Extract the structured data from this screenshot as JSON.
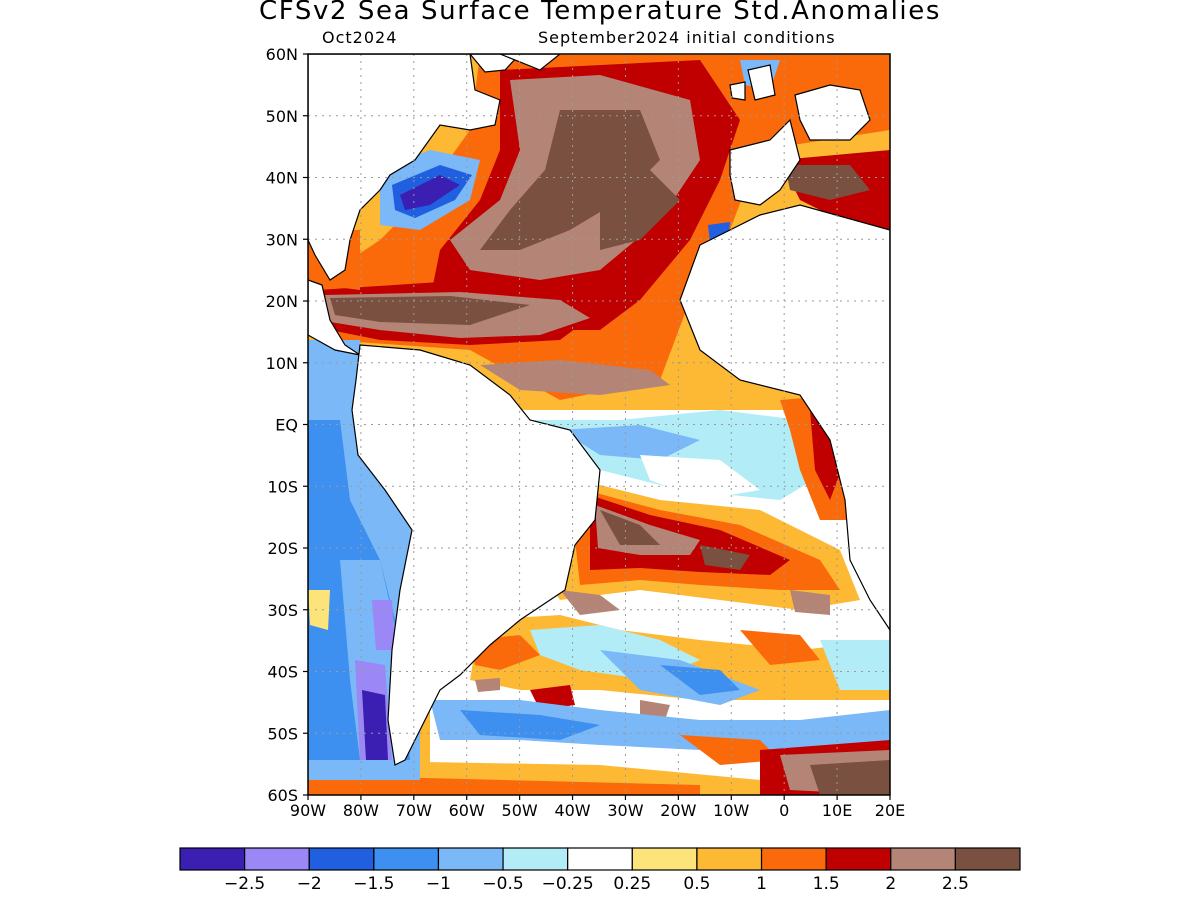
{
  "title": "CFSv2 Sea Surface Temperature Std.Anomalies",
  "subtitle_left": "Oct2024",
  "subtitle_right": "September2024 initial conditions",
  "map": {
    "lon_range": [
      -90,
      20
    ],
    "lat_range": [
      -60,
      60
    ],
    "grid": "dotted",
    "lat_ticks": [
      {
        "value": 60,
        "label": "60N"
      },
      {
        "value": 50,
        "label": "50N"
      },
      {
        "value": 40,
        "label": "40N"
      },
      {
        "value": 30,
        "label": "30N"
      },
      {
        "value": 20,
        "label": "20N"
      },
      {
        "value": 10,
        "label": "10N"
      },
      {
        "value": 0,
        "label": "EQ"
      },
      {
        "value": -10,
        "label": "10S"
      },
      {
        "value": -20,
        "label": "20S"
      },
      {
        "value": -30,
        "label": "30S"
      },
      {
        "value": -40,
        "label": "40S"
      },
      {
        "value": -50,
        "label": "50S"
      },
      {
        "value": -60,
        "label": "60S"
      }
    ],
    "lon_ticks": [
      {
        "value": -90,
        "label": "90W"
      },
      {
        "value": -80,
        "label": "80W"
      },
      {
        "value": -70,
        "label": "70W"
      },
      {
        "value": -60,
        "label": "60W"
      },
      {
        "value": -50,
        "label": "50W"
      },
      {
        "value": -40,
        "label": "40W"
      },
      {
        "value": -30,
        "label": "30W"
      },
      {
        "value": -20,
        "label": "20W"
      },
      {
        "value": -10,
        "label": "10W"
      },
      {
        "value": 0,
        "label": "0"
      },
      {
        "value": 10,
        "label": "10E"
      },
      {
        "value": 20,
        "label": "20E"
      }
    ]
  },
  "colorbar": {
    "colors": [
      "#3b1fb3",
      "#9b87f5",
      "#1f5fe0",
      "#3d8ff0",
      "#7ab8f7",
      "#b2edf7",
      "#ffffff",
      "#fde47a",
      "#fdb934",
      "#fb6a0a",
      "#c00000",
      "#b48576",
      "#7a5040"
    ],
    "labels": [
      "-2.5",
      "-2",
      "-1.5",
      "-1",
      "-0.5",
      "-0.25",
      "0.25",
      "0.5",
      "1",
      "1.5",
      "2",
      "2.5"
    ]
  }
}
